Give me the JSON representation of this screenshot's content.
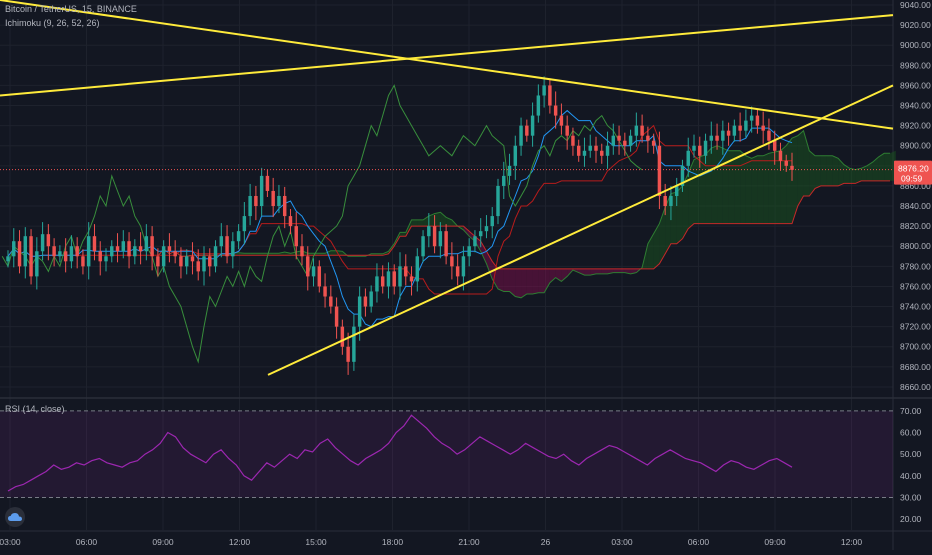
{
  "legend": {
    "symbol": "Bitcoin / TetherUS, 15, BINANCE",
    "indicator": "Ichimoku (9, 26, 52, 26)",
    "rsi": "RSI (14, close)"
  },
  "price_tag": {
    "value": "8876.20",
    "countdown": "09:59"
  },
  "colors": {
    "background": "#131722",
    "grid": "#1e222d",
    "up": "#26a69a",
    "down": "#ef5350",
    "trendline": "#ffeb3b",
    "rsi": "#9c27b0",
    "tenkan": "#2196f3",
    "kijun": "#b71c1c",
    "chikou": "#4caf50",
    "cloud_bull": "#1b5e20",
    "cloud_bear": "#880e4f"
  },
  "chart_data": [
    {
      "type": "candlestick",
      "title": "Bitcoin / TetherUS, 15, BINANCE",
      "ylim": [
        8650,
        9045
      ],
      "y_ticks": [
        "9040.00",
        "9020.00",
        "9000.00",
        "8980.00",
        "8960.00",
        "8940.00",
        "8920.00",
        "8900.00",
        "8880.00",
        "8860.00",
        "8840.00",
        "8820.00",
        "8800.00",
        "8780.00",
        "8760.00",
        "8740.00",
        "8720.00",
        "8700.00",
        "8680.00",
        "8660.00"
      ],
      "x_ticks": [
        "03:00",
        "06:00",
        "09:00",
        "12:00",
        "15:00",
        "18:00",
        "21:00",
        "26",
        "03:00",
        "06:00",
        "09:00",
        "12:00"
      ],
      "last_price": 8876.2,
      "candle_values": [
        8790,
        8805,
        8780,
        8810,
        8770,
        8795,
        8812,
        8800,
        8790,
        8795,
        8785,
        8800,
        8790,
        8780,
        8810,
        8795,
        8785,
        8790,
        8800,
        8795,
        8805,
        8790,
        8800,
        8795,
        8810,
        8790,
        8780,
        8800,
        8795,
        8790,
        8780,
        8790,
        8785,
        8775,
        8790,
        8780,
        8800,
        8810,
        8790,
        8805,
        8815,
        8830,
        8850,
        8840,
        8870,
        8855,
        8840,
        8850,
        8830,
        8820,
        8800,
        8790,
        8770,
        8780,
        8760,
        8750,
        8740,
        8720,
        8700,
        8685,
        8720,
        8750,
        8740,
        8755,
        8770,
        8760,
        8775,
        8760,
        8780,
        8770,
        8765,
        8790,
        8810,
        8820,
        8800,
        8815,
        8790,
        8780,
        8770,
        8790,
        8800,
        8810,
        8815,
        8820,
        8830,
        8860,
        8870,
        8880,
        8900,
        8920,
        8910,
        8930,
        8950,
        8960,
        8940,
        8930,
        8920,
        8910,
        8900,
        8890,
        8895,
        8900,
        8895,
        8890,
        8900,
        8910,
        8905,
        8900,
        8910,
        8920,
        8910,
        8905,
        8900,
        8850,
        8840,
        8850,
        8860,
        8880,
        8895,
        8900,
        8890,
        8905,
        8910,
        8905,
        8915,
        8910,
        8920,
        8915,
        8925,
        8930,
        8920,
        8915,
        8905,
        8895,
        8885,
        8880,
        8876
      ],
      "trendlines": [
        {
          "from": [
            "prev",
            8990
          ],
          "to": [
            "10:30",
            8915
          ],
          "type": "descending"
        },
        {
          "from": [
            "prev",
            8950
          ],
          "to": [
            "12:00",
            9030
          ],
          "type": "ascending"
        },
        {
          "from": [
            "13:30",
            8672
          ],
          "to": [
            "10:30",
            8960
          ],
          "type": "support"
        }
      ]
    },
    {
      "type": "line",
      "title": "RSI (14, close)",
      "ylim": [
        15,
        75
      ],
      "y_ticks": [
        "70.00",
        "60.00",
        "50.00",
        "40.00",
        "30.00",
        "20.00"
      ],
      "bands": [
        30,
        70
      ],
      "values": [
        33,
        35,
        36,
        38,
        40,
        42,
        45,
        43,
        44,
        46,
        45,
        47,
        48,
        46,
        45,
        44,
        46,
        47,
        50,
        52,
        55,
        60,
        58,
        53,
        50,
        48,
        46,
        50,
        52,
        48,
        45,
        40,
        38,
        42,
        46,
        44,
        47,
        50,
        48,
        52,
        51,
        55,
        57,
        53,
        50,
        47,
        45,
        48,
        50,
        52,
        55,
        60,
        63,
        68,
        65,
        62,
        58,
        55,
        53,
        50,
        52,
        55,
        58,
        56,
        54,
        52,
        50,
        52,
        55,
        53,
        51,
        49,
        48,
        50,
        47,
        45,
        48,
        50,
        52,
        54,
        53,
        51,
        49,
        47,
        45,
        48,
        50,
        52,
        50,
        48,
        47,
        46,
        44,
        42,
        45,
        47,
        46,
        44,
        43,
        45,
        47,
        48,
        46,
        44
      ]
    }
  ]
}
